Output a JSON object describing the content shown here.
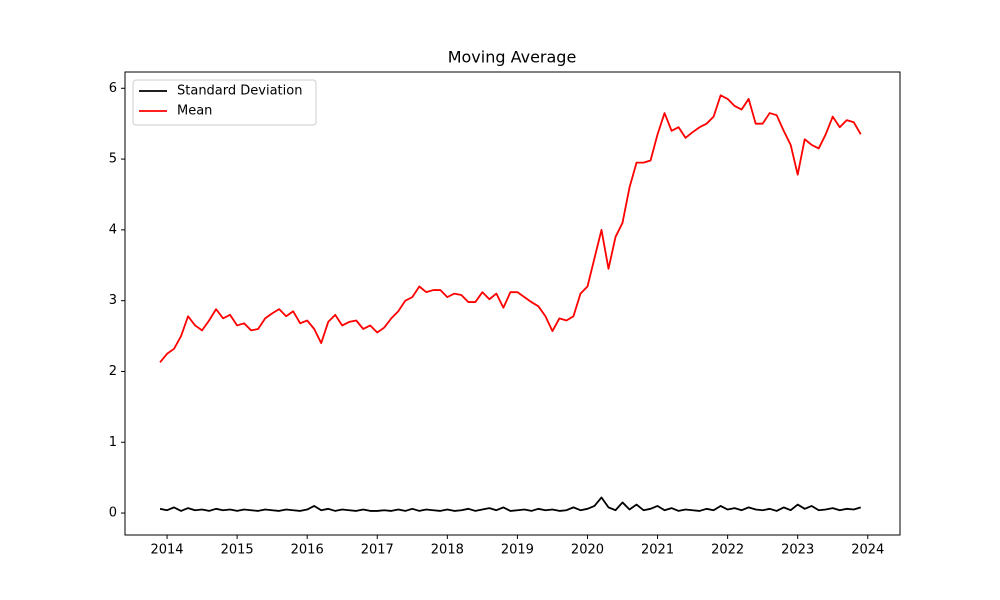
{
  "chart_data": {
    "type": "line",
    "title": "Moving Average",
    "x": [
      2013.9,
      2014,
      2014.1,
      2014.2,
      2014.3,
      2014.4,
      2014.5,
      2014.6,
      2014.7,
      2014.8,
      2014.9,
      2015,
      2015.1,
      2015.2,
      2015.3,
      2015.4,
      2015.5,
      2015.6,
      2015.7,
      2015.8,
      2015.9,
      2016,
      2016.1,
      2016.2,
      2016.3,
      2016.4,
      2016.5,
      2016.6,
      2016.7,
      2016.8,
      2016.9,
      2017,
      2017.1,
      2017.2,
      2017.3,
      2017.4,
      2017.5,
      2017.6,
      2017.7,
      2017.8,
      2017.9,
      2018,
      2018.1,
      2018.2,
      2018.3,
      2018.4,
      2018.5,
      2018.6,
      2018.7,
      2018.8,
      2018.9,
      2019,
      2019.1,
      2019.2,
      2019.3,
      2019.4,
      2019.5,
      2019.6,
      2019.7,
      2019.8,
      2019.9,
      2020,
      2020.1,
      2020.2,
      2020.3,
      2020.4,
      2020.5,
      2020.6,
      2020.7,
      2020.8,
      2020.9,
      2021,
      2021.1,
      2021.2,
      2021.3,
      2021.4,
      2021.5,
      2021.6,
      2021.7,
      2021.8,
      2021.9,
      2022,
      2022.1,
      2022.2,
      2022.3,
      2022.4,
      2022.5,
      2022.6,
      2022.7,
      2022.8,
      2022.9,
      2023,
      2023.1,
      2023.2,
      2023.3,
      2023.4,
      2023.5,
      2023.6,
      2023.7,
      2023.8,
      2023.9
    ],
    "series": [
      {
        "name": "Standard Deviation",
        "color": "#000000",
        "values": [
          0.06,
          0.04,
          0.08,
          0.03,
          0.07,
          0.04,
          0.05,
          0.03,
          0.06,
          0.04,
          0.05,
          0.03,
          0.05,
          0.04,
          0.03,
          0.05,
          0.04,
          0.03,
          0.05,
          0.04,
          0.03,
          0.05,
          0.1,
          0.04,
          0.06,
          0.03,
          0.05,
          0.04,
          0.03,
          0.05,
          0.03,
          0.03,
          0.04,
          0.03,
          0.05,
          0.03,
          0.06,
          0.03,
          0.05,
          0.04,
          0.03,
          0.05,
          0.03,
          0.04,
          0.06,
          0.03,
          0.05,
          0.07,
          0.04,
          0.08,
          0.03,
          0.04,
          0.05,
          0.03,
          0.06,
          0.04,
          0.05,
          0.03,
          0.04,
          0.08,
          0.04,
          0.06,
          0.1,
          0.22,
          0.08,
          0.04,
          0.15,
          0.05,
          0.12,
          0.04,
          0.06,
          0.1,
          0.04,
          0.07,
          0.03,
          0.05,
          0.04,
          0.03,
          0.06,
          0.04,
          0.1,
          0.05,
          0.07,
          0.04,
          0.08,
          0.05,
          0.04,
          0.06,
          0.03,
          0.08,
          0.04,
          0.12,
          0.06,
          0.1,
          0.04,
          0.05,
          0.07,
          0.04,
          0.06,
          0.05,
          0.08
        ]
      },
      {
        "name": "Mean",
        "color": "#ff0000",
        "values": [
          2.13,
          2.25,
          2.32,
          2.5,
          2.78,
          2.65,
          2.58,
          2.72,
          2.88,
          2.75,
          2.8,
          2.65,
          2.68,
          2.58,
          2.6,
          2.75,
          2.82,
          2.88,
          2.78,
          2.85,
          2.68,
          2.72,
          2.6,
          2.4,
          2.7,
          2.8,
          2.65,
          2.7,
          2.72,
          2.6,
          2.65,
          2.55,
          2.62,
          2.75,
          2.85,
          3.0,
          3.05,
          3.2,
          3.12,
          3.15,
          3.15,
          3.05,
          3.1,
          3.08,
          2.98,
          2.98,
          3.12,
          3.02,
          3.1,
          2.9,
          3.12,
          3.12,
          3.05,
          2.98,
          2.92,
          2.78,
          2.57,
          2.75,
          2.72,
          2.78,
          3.1,
          3.2,
          3.6,
          4.0,
          3.45,
          3.9,
          4.1,
          4.6,
          4.95,
          4.95,
          4.98,
          5.35,
          5.65,
          5.4,
          5.45,
          5.3,
          5.38,
          5.45,
          5.5,
          5.6,
          5.9,
          5.85,
          5.75,
          5.7,
          5.85,
          5.5,
          5.5,
          5.65,
          5.62,
          5.4,
          5.2,
          4.78,
          5.28,
          5.2,
          5.15,
          5.35,
          5.6,
          5.45,
          5.55,
          5.52,
          5.35
        ]
      }
    ],
    "xlim": [
      2013.4,
      2024.46
    ],
    "xticks": [
      2014,
      2015,
      2016,
      2017,
      2018,
      2019,
      2020,
      2021,
      2022,
      2023,
      2024
    ],
    "ylim": [
      -0.31,
      6.23
    ],
    "yticks": [
      0,
      1,
      2,
      3,
      4,
      5,
      6
    ],
    "grid": false,
    "legend": "upper left"
  }
}
